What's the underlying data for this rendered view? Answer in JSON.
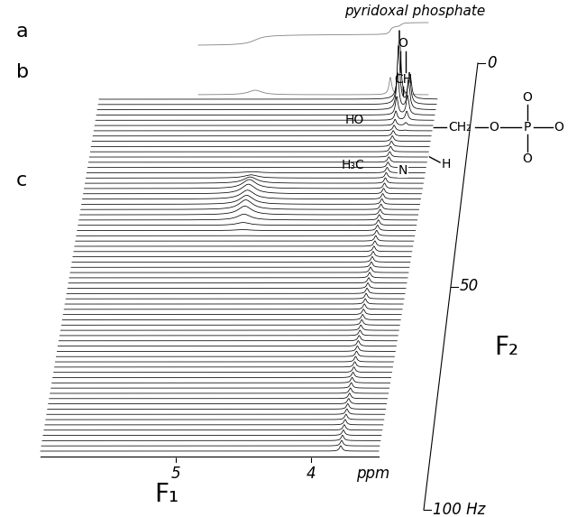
{
  "chart_data": {
    "type": "stacked_spectra",
    "title": "pyridoxal phosphate",
    "panel_labels": [
      "a",
      "b",
      "c"
    ],
    "x_label": "F₁",
    "x_unit": "ppm",
    "y_label": "F₂",
    "xlim": [
      6.0,
      3.5
    ],
    "xticks": [
      5,
      4
    ],
    "ylim": [
      100,
      0
    ],
    "yticks": [
      0,
      50,
      {
        "value": 100,
        "label": "100 Hz"
      }
    ],
    "peaks": [
      {
        "f1": 3.78,
        "f2": 0,
        "height": 70,
        "f1_width": 0.012,
        "f2_width": 2.5
      },
      {
        "f1": 3.7,
        "f2": 2,
        "height": 35,
        "f1_width": 0.012,
        "f2_width": 2.5
      },
      {
        "f1": 4.78,
        "f2": 26,
        "height": 10,
        "f1_width": 0.06,
        "f2_width": 2.5
      },
      {
        "f1": 4.78,
        "f2": 32,
        "height": 10,
        "f1_width": 0.06,
        "f2_width": 2.5
      }
    ],
    "ridges": [
      {
        "f1": 3.78,
        "height": 6,
        "f1_width": 0.012
      }
    ],
    "structure": {
      "substituents": [
        "O",
        "CH",
        "HO",
        "H₃C",
        "N",
        "H"
      ],
      "chain": [
        "CH₂",
        "O",
        "P",
        "O"
      ],
      "phosphate_oxygens": [
        "O",
        "O"
      ]
    }
  }
}
